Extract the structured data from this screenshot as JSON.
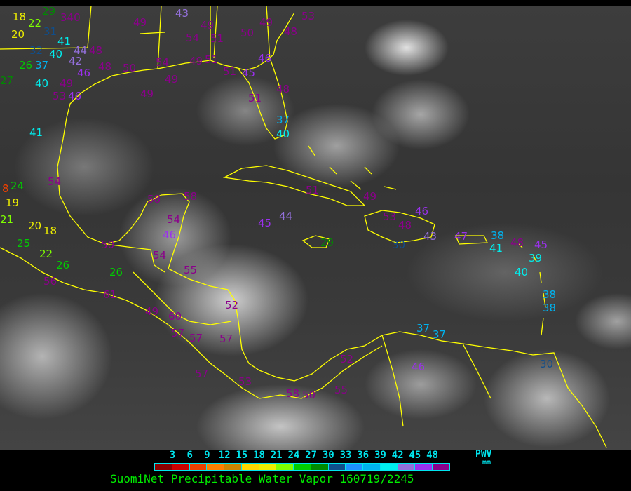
{
  "title": "SuomiNet Precipitable Water Vapor 160719/2245",
  "legend": {
    "ticks": [
      "3",
      "6",
      "9",
      "12",
      "15",
      "18",
      "21",
      "24",
      "27",
      "30",
      "33",
      "36",
      "39",
      "42",
      "45",
      "48"
    ],
    "unit_top": "PWV",
    "unit_bottom": "mm",
    "colors": [
      "#8b0000",
      "#cc0000",
      "#ee4000",
      "#ff8000",
      "#cd8500",
      "#ffd700",
      "#eeee00",
      "#7fff00",
      "#00cd00",
      "#008b00",
      "#104e8b",
      "#1e90ff",
      "#00b2ee",
      "#00eeee",
      "#9370db",
      "#9b30ee",
      "#8b008b"
    ]
  },
  "coastline_color": "#ffff00",
  "stations": [
    "18",
    "22",
    "20",
    "29",
    "340",
    "31",
    "41",
    "32",
    "40",
    "26",
    "37",
    "44",
    "48",
    "42",
    "46",
    "48",
    "50",
    "27",
    "40",
    "49",
    "53",
    "46",
    "49",
    "41",
    "43",
    "49",
    "49",
    "54",
    "51",
    "50",
    "49",
    "48",
    "53",
    "54",
    "49",
    "51",
    "46",
    "51",
    "45",
    "49",
    "51",
    "48",
    "37",
    "40",
    "8",
    "24",
    "19",
    "54",
    "21",
    "20",
    "18",
    "25",
    "22",
    "26",
    "56",
    "50",
    "58",
    "58",
    "54",
    "46",
    "54",
    "26",
    "55",
    "61",
    "49",
    "60",
    "52",
    "57",
    "57",
    "57",
    "57",
    "53",
    "58",
    "50",
    "55",
    "52",
    "46",
    "37",
    "37",
    "51",
    "49",
    "45",
    "44",
    "29",
    "53",
    "46",
    "48",
    "30",
    "43",
    "47",
    "38",
    "41",
    "48",
    "45",
    "40",
    "39",
    "38",
    "38",
    "30"
  ]
}
